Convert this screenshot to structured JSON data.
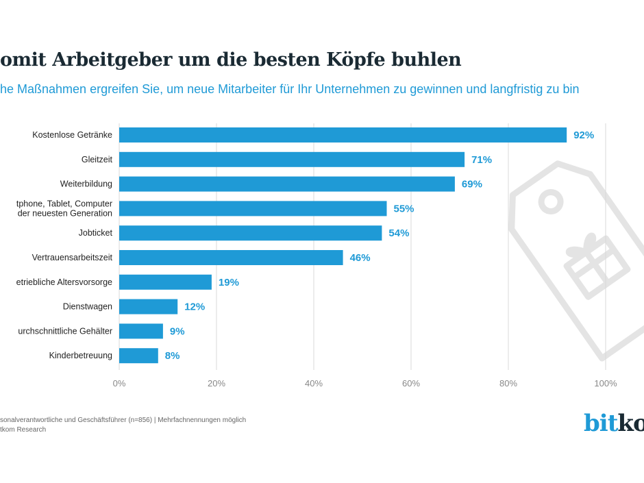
{
  "title": "omit Arbeitgeber um die besten Köpfe buhlen",
  "subtitle": "he Maßnahmen ergreifen Sie, um neue Mitarbeiter für Ihr Unternehmen zu gewinnen und langfristig zu bin",
  "footer": {
    "line1": "sonalverantwortliche und Geschäftsführer (n=856) | Mehrfachnennungen möglich",
    "line2": "tkom Research"
  },
  "logo": {
    "part1": "bit",
    "part2": "ko"
  },
  "colors": {
    "bar": "#1f9ad6",
    "title": "#1a2a33",
    "grid": "#d9d9d9",
    "watermark": "#e4e4e4"
  },
  "watermark_icon": "gift-tag-icon",
  "chart_data": {
    "type": "bar",
    "orientation": "horizontal",
    "categories": [
      [
        "Kostenlose Getränke"
      ],
      [
        "Gleitzeit"
      ],
      [
        "Weiterbildung"
      ],
      [
        "tphone, Tablet, Computer",
        "der neuesten Generation"
      ],
      [
        "Jobticket"
      ],
      [
        "Vertrauensarbeitszeit"
      ],
      [
        "etriebliche Altersvorsorge"
      ],
      [
        "Dienstwagen"
      ],
      [
        "urchschnittliche Gehälter"
      ],
      [
        "Kinderbetreuung"
      ]
    ],
    "values": [
      92,
      71,
      69,
      55,
      54,
      46,
      19,
      12,
      9,
      8
    ],
    "value_labels": [
      "92%",
      "71%",
      "69%",
      "55%",
      "54%",
      "46%",
      "19%",
      "12%",
      "9%",
      "8%"
    ],
    "xlim": [
      0,
      100
    ],
    "xticks": [
      "0%",
      "20%",
      "40%",
      "60%",
      "80%",
      "100%"
    ],
    "grid": true,
    "legend": "none"
  }
}
